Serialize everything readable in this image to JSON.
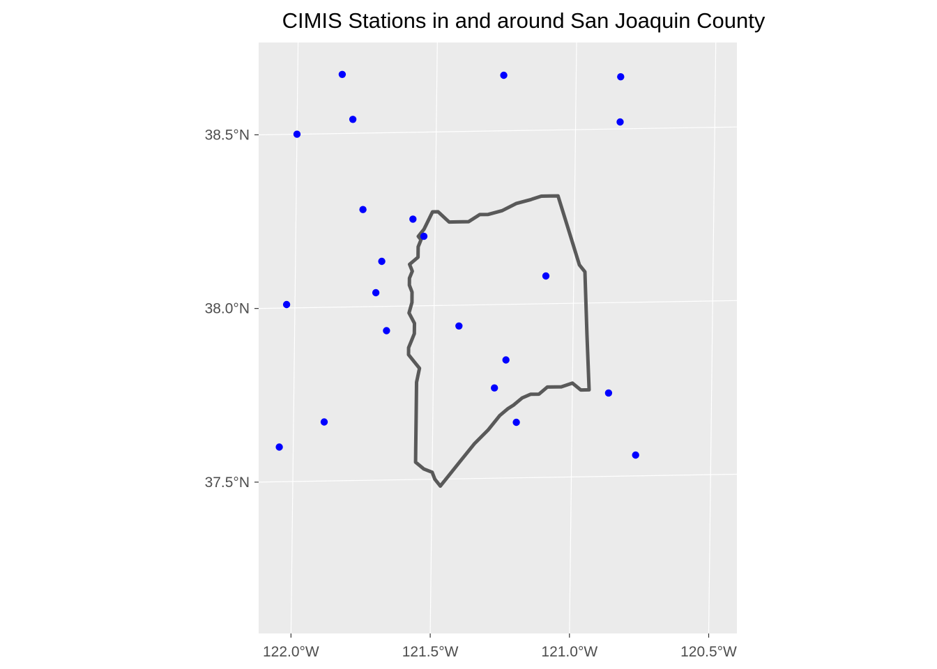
{
  "chart_data": {
    "type": "scatter",
    "title": "CIMIS Stations in and around San Joaquin County",
    "xlabel": "",
    "ylabel": "",
    "x_ticks": [
      {
        "value": -122.0,
        "label": "122.0°W"
      },
      {
        "value": -121.5,
        "label": "121.5°W"
      },
      {
        "value": -121.0,
        "label": "121.0°W"
      },
      {
        "value": -120.5,
        "label": "120.5°W"
      }
    ],
    "y_ticks": [
      {
        "value": 37.5,
        "label": "37.5°N"
      },
      {
        "value": 38.0,
        "label": "38.0°N"
      },
      {
        "value": 38.5,
        "label": "38.5°N"
      }
    ],
    "xlim": [
      -122.13,
      -120.42
    ],
    "ylim": [
      37.05,
      38.75
    ],
    "grid": true,
    "panel_background": "#ebebeb",
    "grid_color": "#ffffff",
    "point_color": "#0000ff",
    "boundary_color": "#595959",
    "stations": [
      {
        "lon": -121.84,
        "lat": 38.67
      },
      {
        "lon": -121.26,
        "lat": 38.66
      },
      {
        "lon": -120.84,
        "lat": 38.65
      },
      {
        "lon": -121.8,
        "lat": 38.54
      },
      {
        "lon": -122.0,
        "lat": 38.5
      },
      {
        "lon": -120.84,
        "lat": 38.52
      },
      {
        "lon": -121.76,
        "lat": 38.28
      },
      {
        "lon": -121.58,
        "lat": 38.25
      },
      {
        "lon": -121.54,
        "lat": 38.2
      },
      {
        "lon": -121.69,
        "lat": 38.13
      },
      {
        "lon": -121.1,
        "lat": 38.08
      },
      {
        "lon": -121.71,
        "lat": 38.04
      },
      {
        "lon": -122.03,
        "lat": 38.01
      },
      {
        "lon": -121.67,
        "lat": 37.93
      },
      {
        "lon": -121.41,
        "lat": 37.94
      },
      {
        "lon": -121.24,
        "lat": 37.84
      },
      {
        "lon": -121.28,
        "lat": 37.76
      },
      {
        "lon": -120.87,
        "lat": 37.74
      },
      {
        "lon": -121.89,
        "lat": 37.67
      },
      {
        "lon": -121.2,
        "lat": 37.66
      },
      {
        "lon": -122.05,
        "lat": 37.6
      },
      {
        "lon": -120.77,
        "lat": 37.56
      }
    ],
    "county_boundary": [
      [
        -121.51,
        38.27
      ],
      [
        -121.49,
        38.27
      ],
      [
        -121.45,
        38.24
      ],
      [
        -121.42,
        38.24
      ],
      [
        -121.38,
        38.24
      ],
      [
        -121.34,
        38.26
      ],
      [
        -121.31,
        38.26
      ],
      [
        -121.26,
        38.27
      ],
      [
        -121.21,
        38.29
      ],
      [
        -121.16,
        38.3
      ],
      [
        -121.12,
        38.31
      ],
      [
        -121.09,
        38.31
      ],
      [
        -121.06,
        38.31
      ],
      [
        -121.02,
        38.21
      ],
      [
        -120.98,
        38.11
      ],
      [
        -120.96,
        38.09
      ],
      [
        -120.95,
        37.91
      ],
      [
        -120.94,
        37.75
      ],
      [
        -120.97,
        37.75
      ],
      [
        -121.0,
        37.77
      ],
      [
        -121.04,
        37.76
      ],
      [
        -121.09,
        37.76
      ],
      [
        -121.12,
        37.74
      ],
      [
        -121.15,
        37.74
      ],
      [
        -121.18,
        37.73
      ],
      [
        -121.21,
        37.71
      ],
      [
        -121.23,
        37.7
      ],
      [
        -121.26,
        37.68
      ],
      [
        -121.3,
        37.64
      ],
      [
        -121.35,
        37.6
      ],
      [
        -121.4,
        37.55
      ],
      [
        -121.44,
        37.51
      ],
      [
        -121.47,
        37.48
      ],
      [
        -121.49,
        37.5
      ],
      [
        -121.5,
        37.52
      ],
      [
        -121.53,
        37.53
      ],
      [
        -121.56,
        37.55
      ],
      [
        -121.56,
        37.59
      ],
      [
        -121.56,
        37.68
      ],
      [
        -121.56,
        37.78
      ],
      [
        -121.55,
        37.82
      ],
      [
        -121.57,
        37.84
      ],
      [
        -121.58,
        37.85
      ],
      [
        -121.59,
        37.86
      ],
      [
        -121.59,
        37.88
      ],
      [
        -121.58,
        37.9
      ],
      [
        -121.57,
        37.92
      ],
      [
        -121.57,
        37.95
      ],
      [
        -121.59,
        37.98
      ],
      [
        -121.58,
        38.01
      ],
      [
        -121.58,
        38.04
      ],
      [
        -121.59,
        38.06
      ],
      [
        -121.59,
        38.08
      ],
      [
        -121.58,
        38.1
      ],
      [
        -121.59,
        38.12
      ],
      [
        -121.56,
        38.14
      ],
      [
        -121.56,
        38.17
      ],
      [
        -121.55,
        38.19
      ],
      [
        -121.56,
        38.2
      ],
      [
        -121.54,
        38.22
      ],
      [
        -121.51,
        38.27
      ]
    ]
  }
}
